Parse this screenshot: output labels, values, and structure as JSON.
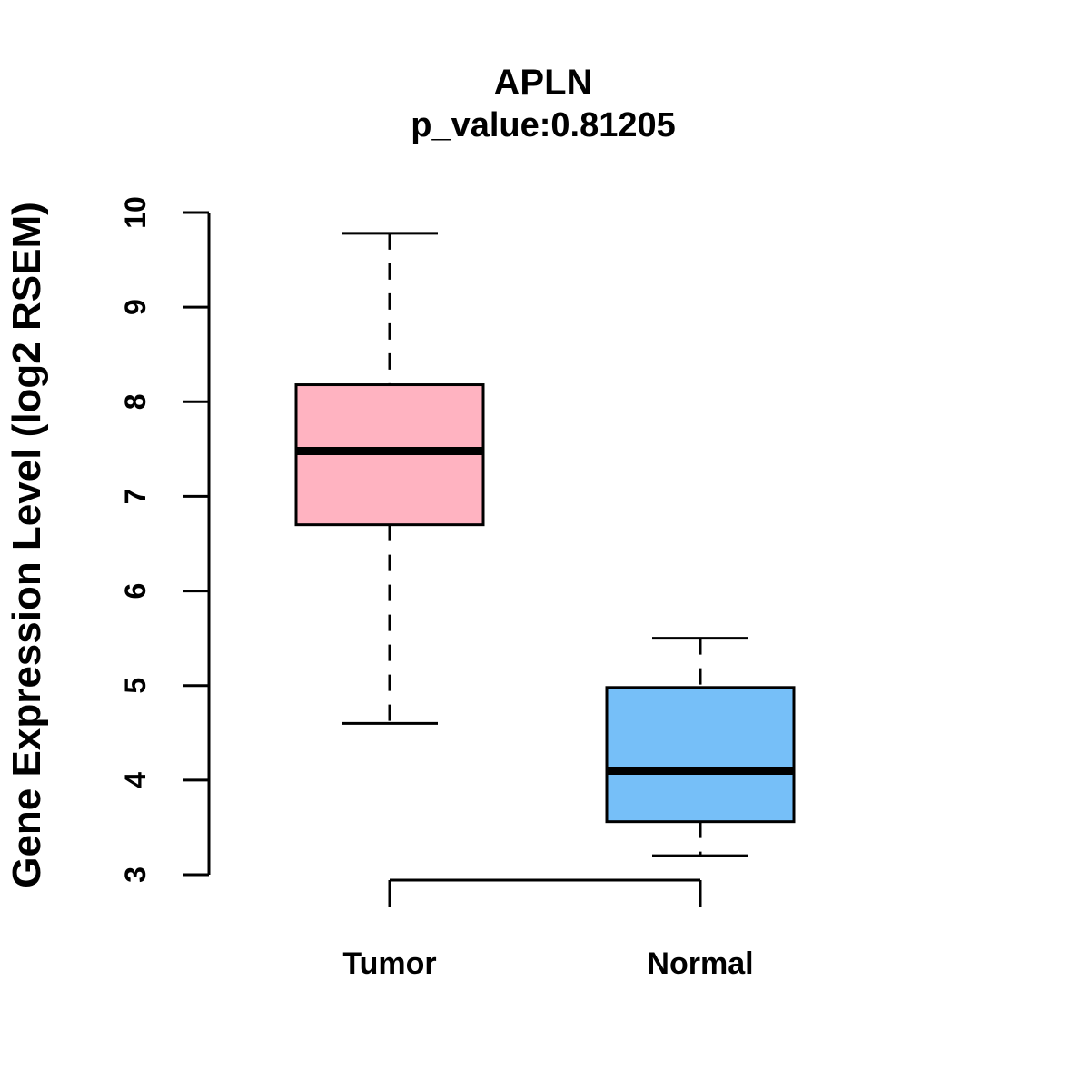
{
  "chart_data": {
    "type": "boxplot",
    "title": "APLN",
    "subtitle": "p_value:0.81205",
    "ylabel": "Gene Expression Level (log2 RSEM)",
    "xlabel": "",
    "ylim": [
      3,
      10
    ],
    "yticks": [
      3,
      4,
      5,
      6,
      7,
      8,
      9,
      10
    ],
    "categories": [
      "Tumor",
      "Normal"
    ],
    "grid": false,
    "legend": "none",
    "colors": {
      "axis": "#000000",
      "text": "#000000",
      "tumor_fill": "#FFB3C1",
      "normal_fill": "#76BFF8"
    },
    "series": [
      {
        "name": "Tumor",
        "fill_color": "#FFB3C1",
        "whisker_low": 4.6,
        "q1": 6.7,
        "median": 7.48,
        "q3": 8.18,
        "whisker_high": 9.78
      },
      {
        "name": "Normal",
        "fill_color": "#76BFF8",
        "whisker_low": 3.2,
        "q1": 3.56,
        "median": 4.1,
        "q3": 4.98,
        "whisker_high": 5.5
      }
    ]
  }
}
